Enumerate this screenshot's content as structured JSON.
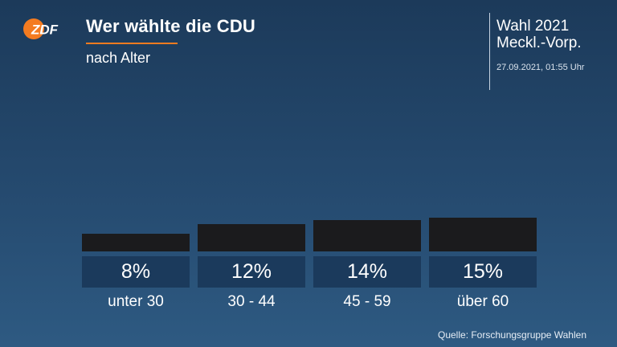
{
  "brand": {
    "logo_text": "ZDF",
    "logo_color": "#f47b20",
    "accent_color": "#f47b20"
  },
  "header": {
    "title": "Wer wählte die CDU",
    "subtitle": "nach Alter"
  },
  "election": {
    "line1": "Wahl 2021",
    "line2": "Meckl.-Vorp.",
    "timestamp": "27.09.2021, 01:55 Uhr"
  },
  "source": "Quelle: Forschungsgruppe Wahlen",
  "colors": {
    "bar": "#1b1b1d",
    "value_box": "#1b3a5c"
  },
  "chart_data": {
    "type": "bar",
    "title": "Wer wählte die CDU",
    "subtitle": "nach Alter",
    "categories": [
      "unter 30",
      "30 - 44",
      "45 - 59",
      "über 60"
    ],
    "values": [
      8,
      12,
      14,
      15
    ],
    "value_labels": [
      "8%",
      "12%",
      "14%",
      "15%"
    ],
    "unit": "%",
    "xlabel": "",
    "ylabel": "",
    "grid": false
  }
}
